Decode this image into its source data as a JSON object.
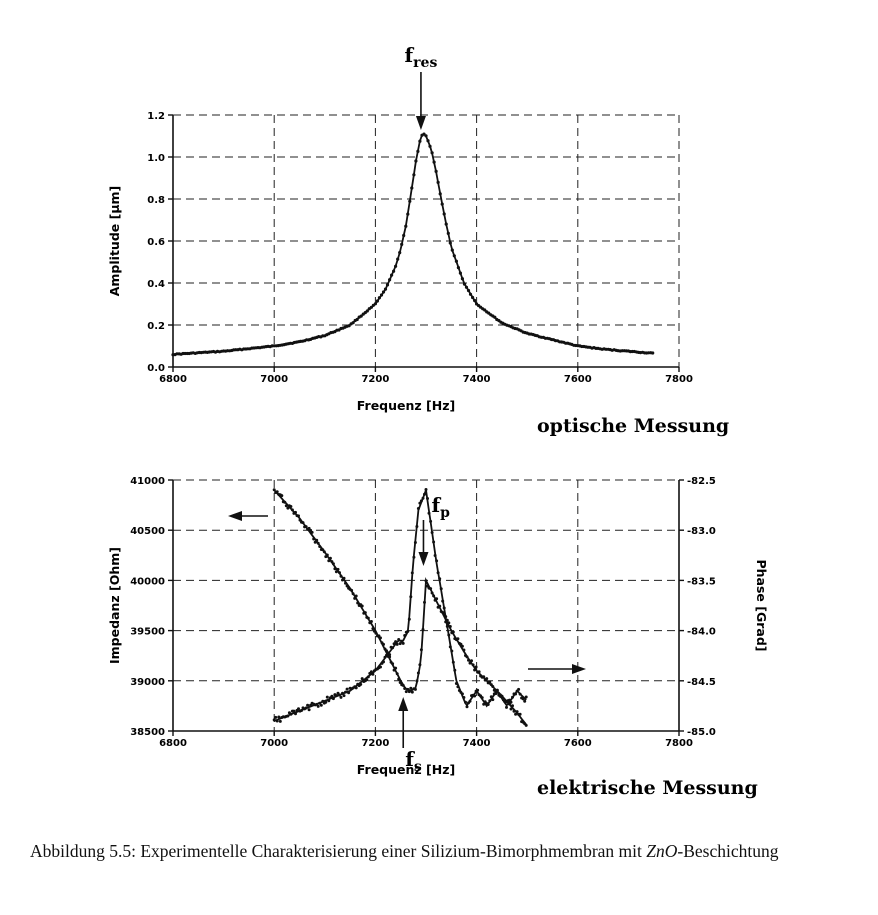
{
  "chart_data": [
    {
      "type": "line",
      "xlabel": "Frequenz [Hz]",
      "ylabel": "Amplitude [μm]",
      "xlim": [
        6800,
        7800
      ],
      "ylim": [
        0.0,
        1.2
      ],
      "xticks": [
        "6800",
        "7000",
        "7200",
        "7400",
        "7600",
        "7800"
      ],
      "yticks": [
        "0.0",
        "0.2",
        "0.4",
        "0.6",
        "0.8",
        "1.0",
        "1.2"
      ],
      "grid": true,
      "annotations": [
        {
          "text": "f",
          "sub": "res",
          "x": 7290
        }
      ],
      "side_label": "optische Messung",
      "series": [
        {
          "x": [
            6800,
            6900,
            7000,
            7050,
            7100,
            7150,
            7200,
            7220,
            7240,
            7250,
            7260,
            7270,
            7280,
            7290,
            7295,
            7300,
            7310,
            7320,
            7330,
            7340,
            7350,
            7375,
            7400,
            7450,
            7500,
            7550,
            7600,
            7650,
            7700,
            7750
          ],
          "y": [
            0.06,
            0.075,
            0.1,
            0.12,
            0.15,
            0.2,
            0.3,
            0.37,
            0.48,
            0.56,
            0.67,
            0.82,
            0.98,
            1.1,
            1.11,
            1.1,
            1.04,
            0.93,
            0.8,
            0.68,
            0.57,
            0.4,
            0.3,
            0.21,
            0.16,
            0.13,
            0.1,
            0.085,
            0.075,
            0.065
          ]
        }
      ]
    },
    {
      "type": "line",
      "xlabel": "Frequenz [Hz]",
      "ylabel": "Impedanz [Ohm]",
      "y2label": "Phase [Grad]",
      "xlim": [
        6800,
        7800
      ],
      "ylim": [
        38500,
        41000
      ],
      "y2lim": [
        -85.0,
        -82.5
      ],
      "xticks": [
        "6800",
        "7000",
        "7200",
        "7400",
        "7600",
        "7800"
      ],
      "yticks": [
        "38500",
        "39000",
        "39500",
        "40000",
        "40500",
        "41000"
      ],
      "y2ticks": [
        "-85.0",
        "-84.5",
        "-84.0",
        "-83.5",
        "-83.0",
        "-82.5"
      ],
      "grid": true,
      "annotations": [
        {
          "text": "f",
          "sub": "s",
          "x": 7255
        },
        {
          "text": "f",
          "sub": "p",
          "x": 7295
        }
      ],
      "side_label": "elektrische Messung",
      "series": [
        {
          "axis": "left",
          "x": [
            7000,
            7050,
            7100,
            7150,
            7200,
            7230,
            7250,
            7260,
            7270,
            7280,
            7290,
            7300,
            7320,
            7350,
            7380,
            7400,
            7420,
            7450,
            7480,
            7500
          ],
          "y": [
            40900,
            40620,
            40280,
            39920,
            39500,
            39200,
            39000,
            38920,
            38900,
            38930,
            39200,
            40000,
            39800,
            39500,
            39250,
            39100,
            39000,
            38850,
            38680,
            38550
          ]
        },
        {
          "axis": "right",
          "x": [
            7000,
            7050,
            7100,
            7150,
            7200,
            7230,
            7245,
            7255,
            7265,
            7275,
            7285,
            7300,
            7320,
            7340,
            7360,
            7380,
            7400,
            7420,
            7440,
            7460,
            7480,
            7500
          ],
          "y": [
            -84.9,
            -84.8,
            -84.7,
            -84.6,
            -84.4,
            -84.2,
            -84.1,
            -84.1,
            -84.0,
            -83.3,
            -82.8,
            -82.6,
            -83.3,
            -83.9,
            -84.5,
            -84.75,
            -84.6,
            -84.75,
            -84.6,
            -84.75,
            -84.6,
            -84.7
          ]
        }
      ]
    }
  ],
  "caption": {
    "prefix": "Abbildung 5.5: Experimentelle Charakterisierung einer Silizium-Bimorphmembran mit ",
    "italic": "ZnO",
    "suffix": "-Beschichtung"
  }
}
